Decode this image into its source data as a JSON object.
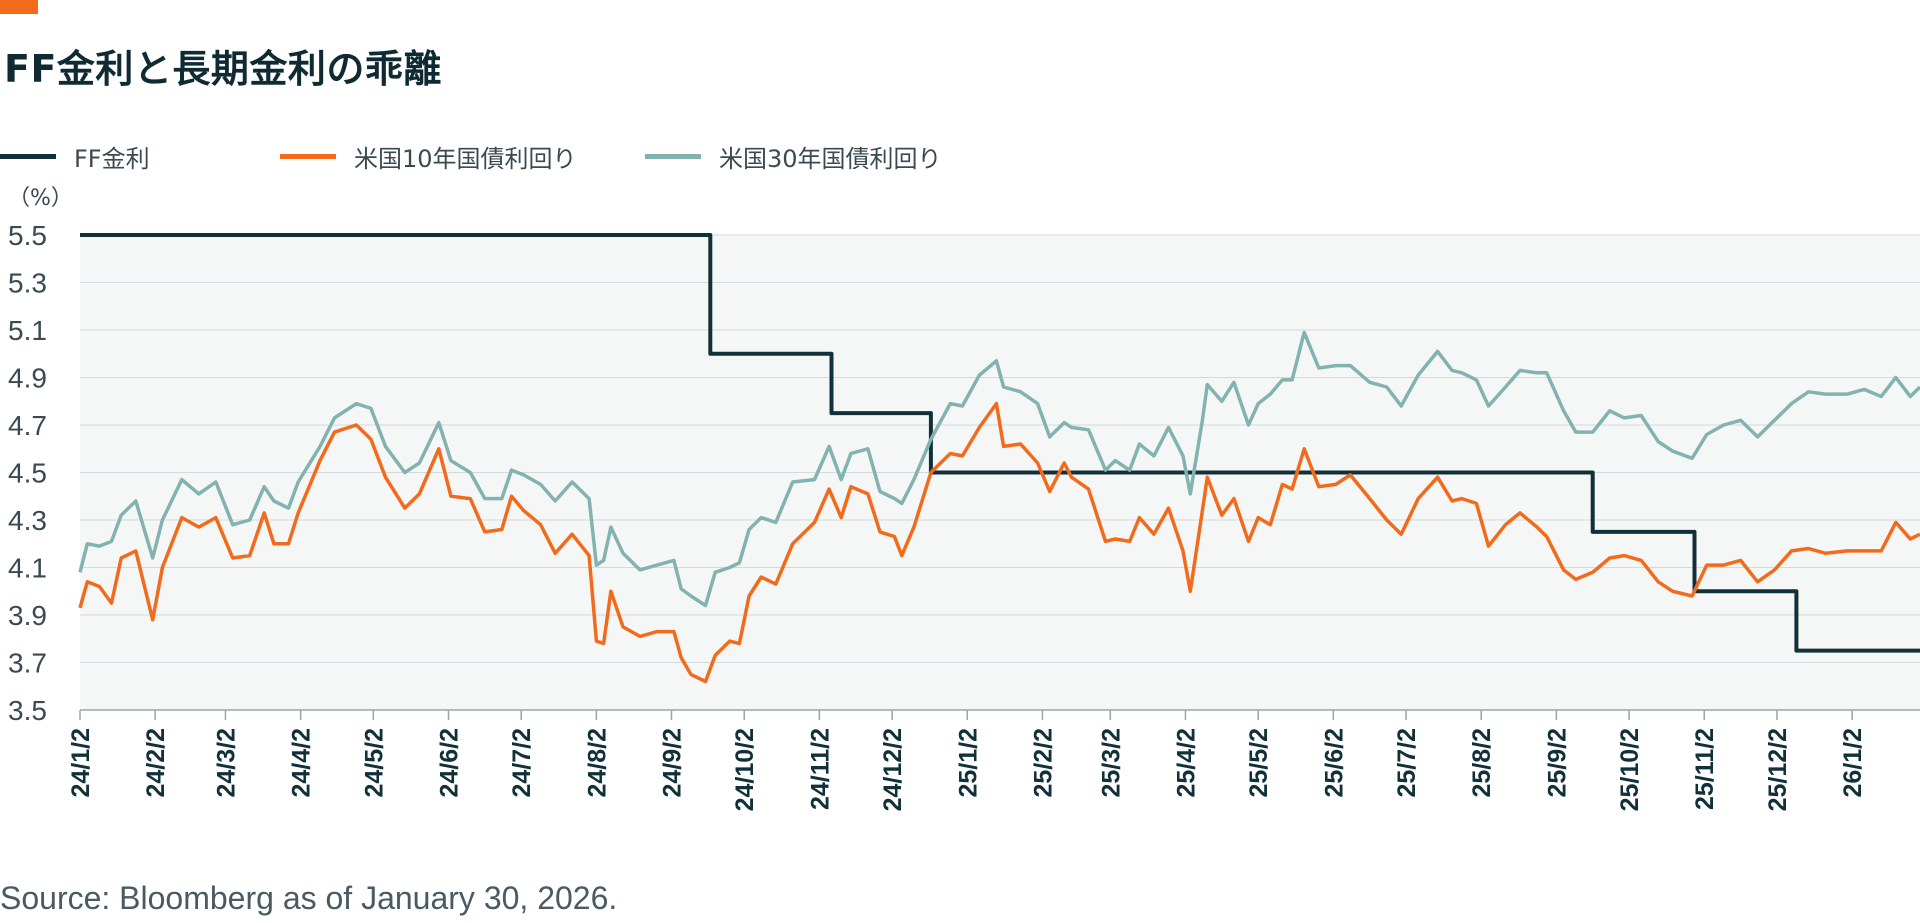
{
  "title": "FF金利と長期金利の乖離",
  "legend": [
    {
      "label": "FF金利",
      "color": "#12303a"
    },
    {
      "label": "米国10年国債利回り",
      "color": "#f26b1d"
    },
    {
      "label": "米国30年国債利回り",
      "color": "#82b3b0"
    }
  ],
  "source": "Source: Bloomberg as of January 30, 2026.",
  "chart_data": {
    "type": "line",
    "title": "FF金利と長期金利の乖離",
    "ylabel": "（%）",
    "ylim": [
      3.5,
      5.5
    ],
    "yticks": [
      "5.5",
      "5.3",
      "5.1",
      "4.9",
      "4.7",
      "4.5",
      "4.3",
      "4.1",
      "3.9",
      "3.7",
      "3.5"
    ],
    "x_range": [
      "24/1/2",
      "26/1/30"
    ],
    "x_ticks": [
      "24/1/2",
      "24/2/2",
      "24/3/2",
      "24/4/2",
      "24/5/2",
      "24/6/2",
      "24/7/2",
      "24/8/2",
      "24/9/2",
      "24/10/2",
      "24/11/2",
      "24/12/2",
      "25/1/2",
      "25/2/2",
      "25/3/2",
      "25/4/2",
      "25/5/2",
      "25/6/2",
      "25/7/2",
      "25/8/2",
      "25/9/2",
      "25/10/2",
      "25/11/2",
      "25/12/2",
      "26/1/2"
    ],
    "grid": true,
    "series": [
      {
        "name": "FF金利",
        "color": "#12303a",
        "style": "step",
        "points": [
          [
            "24/1/2",
            5.5
          ],
          [
            "24/9/18",
            5.5
          ],
          [
            "24/9/18",
            5.0
          ],
          [
            "24/11/7",
            5.0
          ],
          [
            "24/11/7",
            4.75
          ],
          [
            "24/12/18",
            4.75
          ],
          [
            "24/12/18",
            4.5
          ],
          [
            "25/9/17",
            4.5
          ],
          [
            "25/9/17",
            4.25
          ],
          [
            "25/10/29",
            4.25
          ],
          [
            "25/10/29",
            4.0
          ],
          [
            "25/12/10",
            4.0
          ],
          [
            "25/12/10",
            3.75
          ],
          [
            "26/1/30",
            3.75
          ]
        ]
      },
      {
        "name": "米国10年国債利回り",
        "color": "#f26b1d",
        "style": "line",
        "points": [
          [
            "24/1/2",
            3.93
          ],
          [
            "24/1/5",
            4.04
          ],
          [
            "24/1/10",
            4.02
          ],
          [
            "24/1/15",
            3.95
          ],
          [
            "24/1/19",
            4.14
          ],
          [
            "24/1/25",
            4.17
          ],
          [
            "24/2/1",
            3.88
          ],
          [
            "24/2/5",
            4.1
          ],
          [
            "24/2/13",
            4.31
          ],
          [
            "24/2/20",
            4.27
          ],
          [
            "24/2/27",
            4.31
          ],
          [
            "24/3/5",
            4.14
          ],
          [
            "24/3/12",
            4.15
          ],
          [
            "24/3/18",
            4.33
          ],
          [
            "24/3/22",
            4.2
          ],
          [
            "24/3/28",
            4.2
          ],
          [
            "24/4/1",
            4.33
          ],
          [
            "24/4/10",
            4.55
          ],
          [
            "24/4/16",
            4.67
          ],
          [
            "24/4/25",
            4.7
          ],
          [
            "24/5/1",
            4.64
          ],
          [
            "24/5/7",
            4.48
          ],
          [
            "24/5/15",
            4.35
          ],
          [
            "24/5/21",
            4.41
          ],
          [
            "24/5/29",
            4.6
          ],
          [
            "24/6/3",
            4.4
          ],
          [
            "24/6/11",
            4.39
          ],
          [
            "24/6/17",
            4.25
          ],
          [
            "24/6/24",
            4.26
          ],
          [
            "24/6/28",
            4.4
          ],
          [
            "24/7/3",
            4.34
          ],
          [
            "24/7/10",
            4.28
          ],
          [
            "24/7/16",
            4.16
          ],
          [
            "24/7/23",
            4.24
          ],
          [
            "24/7/30",
            4.15
          ],
          [
            "24/8/2",
            3.79
          ],
          [
            "24/8/5",
            3.78
          ],
          [
            "24/8/8",
            4.0
          ],
          [
            "24/8/13",
            3.85
          ],
          [
            "24/8/20",
            3.81
          ],
          [
            "24/8/27",
            3.83
          ],
          [
            "24/9/3",
            3.83
          ],
          [
            "24/9/6",
            3.72
          ],
          [
            "24/9/10",
            3.65
          ],
          [
            "24/9/16",
            3.62
          ],
          [
            "24/9/20",
            3.73
          ],
          [
            "24/9/26",
            3.79
          ],
          [
            "24/9/30",
            3.78
          ],
          [
            "24/10/4",
            3.98
          ],
          [
            "24/10/9",
            4.06
          ],
          [
            "24/10/15",
            4.03
          ],
          [
            "24/10/22",
            4.2
          ],
          [
            "24/10/31",
            4.29
          ],
          [
            "24/11/6",
            4.43
          ],
          [
            "24/11/11",
            4.31
          ],
          [
            "24/11/15",
            4.44
          ],
          [
            "24/11/22",
            4.41
          ],
          [
            "24/11/27",
            4.25
          ],
          [
            "24/12/3",
            4.23
          ],
          [
            "24/12/6",
            4.15
          ],
          [
            "24/12/11",
            4.27
          ],
          [
            "24/12/18",
            4.5
          ],
          [
            "24/12/26",
            4.58
          ],
          [
            "24/12/31",
            4.57
          ],
          [
            "25/1/7",
            4.69
          ],
          [
            "25/1/14",
            4.79
          ],
          [
            "25/1/17",
            4.61
          ],
          [
            "25/1/24",
            4.62
          ],
          [
            "25/1/31",
            4.54
          ],
          [
            "25/2/5",
            4.42
          ],
          [
            "25/2/11",
            4.54
          ],
          [
            "25/2/14",
            4.48
          ],
          [
            "25/2/21",
            4.43
          ],
          [
            "25/2/28",
            4.21
          ],
          [
            "25/3/4",
            4.22
          ],
          [
            "25/3/10",
            4.21
          ],
          [
            "25/3/14",
            4.31
          ],
          [
            "25/3/20",
            4.24
          ],
          [
            "25/3/26",
            4.35
          ],
          [
            "25/4/1",
            4.17
          ],
          [
            "25/4/4",
            4.0
          ],
          [
            "25/4/9",
            4.34
          ],
          [
            "25/4/11",
            4.48
          ],
          [
            "25/4/17",
            4.32
          ],
          [
            "25/4/22",
            4.39
          ],
          [
            "25/4/28",
            4.21
          ],
          [
            "25/5/2",
            4.31
          ],
          [
            "25/5/7",
            4.28
          ],
          [
            "25/5/12",
            4.45
          ],
          [
            "25/5/16",
            4.43
          ],
          [
            "25/5/21",
            4.6
          ],
          [
            "25/5/27",
            4.44
          ],
          [
            "25/6/3",
            4.45
          ],
          [
            "25/6/9",
            4.49
          ],
          [
            "25/6/17",
            4.39
          ],
          [
            "25/6/24",
            4.3
          ],
          [
            "25/6/30",
            4.24
          ],
          [
            "25/7/7",
            4.39
          ],
          [
            "25/7/15",
            4.48
          ],
          [
            "25/7/21",
            4.38
          ],
          [
            "25/7/25",
            4.39
          ],
          [
            "25/7/31",
            4.37
          ],
          [
            "25/8/5",
            4.19
          ],
          [
            "25/8/12",
            4.28
          ],
          [
            "25/8/18",
            4.33
          ],
          [
            "25/8/25",
            4.27
          ],
          [
            "25/8/29",
            4.23
          ],
          [
            "25/9/5",
            4.09
          ],
          [
            "25/9/10",
            4.05
          ],
          [
            "25/9/17",
            4.08
          ],
          [
            "25/9/24",
            4.14
          ],
          [
            "25/9/30",
            4.15
          ],
          [
            "25/10/7",
            4.13
          ],
          [
            "25/10/14",
            4.04
          ],
          [
            "25/10/20",
            4.0
          ],
          [
            "25/10/28",
            3.98
          ],
          [
            "25/11/3",
            4.11
          ],
          [
            "25/11/10",
            4.11
          ],
          [
            "25/11/17",
            4.13
          ],
          [
            "25/11/24",
            4.04
          ],
          [
            "25/12/1",
            4.09
          ],
          [
            "25/12/8",
            4.17
          ],
          [
            "25/12/15",
            4.18
          ],
          [
            "25/12/22",
            4.16
          ],
          [
            "25/12/31",
            4.17
          ],
          [
            "26/1/7",
            4.17
          ],
          [
            "26/1/14",
            4.17
          ],
          [
            "26/1/20",
            4.29
          ],
          [
            "26/1/26",
            4.22
          ],
          [
            "26/1/30",
            4.24
          ]
        ]
      },
      {
        "name": "米国30年国債利回り",
        "color": "#82b3b0",
        "style": "line",
        "points": [
          [
            "24/1/2",
            4.08
          ],
          [
            "24/1/5",
            4.2
          ],
          [
            "24/1/10",
            4.19
          ],
          [
            "24/1/15",
            4.21
          ],
          [
            "24/1/19",
            4.32
          ],
          [
            "24/1/25",
            4.38
          ],
          [
            "24/2/1",
            4.14
          ],
          [
            "24/2/5",
            4.3
          ],
          [
            "24/2/13",
            4.47
          ],
          [
            "24/2/20",
            4.41
          ],
          [
            "24/2/27",
            4.46
          ],
          [
            "24/3/5",
            4.28
          ],
          [
            "24/3/12",
            4.3
          ],
          [
            "24/3/18",
            4.44
          ],
          [
            "24/3/22",
            4.38
          ],
          [
            "24/3/28",
            4.35
          ],
          [
            "24/4/1",
            4.46
          ],
          [
            "24/4/10",
            4.61
          ],
          [
            "24/4/16",
            4.73
          ],
          [
            "24/4/25",
            4.79
          ],
          [
            "24/5/1",
            4.77
          ],
          [
            "24/5/7",
            4.61
          ],
          [
            "24/5/15",
            4.5
          ],
          [
            "24/5/21",
            4.54
          ],
          [
            "24/5/29",
            4.71
          ],
          [
            "24/6/3",
            4.55
          ],
          [
            "24/6/11",
            4.5
          ],
          [
            "24/6/17",
            4.39
          ],
          [
            "24/6/24",
            4.39
          ],
          [
            "24/6/28",
            4.51
          ],
          [
            "24/7/3",
            4.49
          ],
          [
            "24/7/10",
            4.45
          ],
          [
            "24/7/16",
            4.38
          ],
          [
            "24/7/23",
            4.46
          ],
          [
            "24/7/30",
            4.39
          ],
          [
            "24/8/2",
            4.11
          ],
          [
            "24/8/5",
            4.13
          ],
          [
            "24/8/8",
            4.27
          ],
          [
            "24/8/13",
            4.16
          ],
          [
            "24/8/20",
            4.09
          ],
          [
            "24/8/27",
            4.11
          ],
          [
            "24/9/3",
            4.13
          ],
          [
            "24/9/6",
            4.01
          ],
          [
            "24/9/10",
            3.98
          ],
          [
            "24/9/16",
            3.94
          ],
          [
            "24/9/20",
            4.08
          ],
          [
            "24/9/26",
            4.1
          ],
          [
            "24/9/30",
            4.12
          ],
          [
            "24/10/4",
            4.26
          ],
          [
            "24/10/9",
            4.31
          ],
          [
            "24/10/15",
            4.29
          ],
          [
            "24/10/22",
            4.46
          ],
          [
            "24/10/31",
            4.47
          ],
          [
            "24/11/6",
            4.61
          ],
          [
            "24/11/11",
            4.47
          ],
          [
            "24/11/15",
            4.58
          ],
          [
            "24/11/22",
            4.6
          ],
          [
            "24/11/27",
            4.42
          ],
          [
            "24/12/3",
            4.39
          ],
          [
            "24/12/6",
            4.37
          ],
          [
            "24/12/11",
            4.47
          ],
          [
            "24/12/18",
            4.64
          ],
          [
            "24/12/26",
            4.79
          ],
          [
            "24/12/31",
            4.78
          ],
          [
            "25/1/7",
            4.91
          ],
          [
            "25/1/14",
            4.97
          ],
          [
            "25/1/17",
            4.86
          ],
          [
            "25/1/24",
            4.84
          ],
          [
            "25/1/31",
            4.79
          ],
          [
            "25/2/5",
            4.65
          ],
          [
            "25/2/11",
            4.71
          ],
          [
            "25/2/14",
            4.69
          ],
          [
            "25/2/21",
            4.68
          ],
          [
            "25/2/28",
            4.51
          ],
          [
            "25/3/4",
            4.55
          ],
          [
            "25/3/10",
            4.51
          ],
          [
            "25/3/14",
            4.62
          ],
          [
            "25/3/20",
            4.57
          ],
          [
            "25/3/26",
            4.69
          ],
          [
            "25/4/1",
            4.57
          ],
          [
            "25/4/4",
            4.41
          ],
          [
            "25/4/9",
            4.72
          ],
          [
            "25/4/11",
            4.87
          ],
          [
            "25/4/17",
            4.8
          ],
          [
            "25/4/22",
            4.88
          ],
          [
            "25/4/28",
            4.7
          ],
          [
            "25/5/2",
            4.79
          ],
          [
            "25/5/7",
            4.83
          ],
          [
            "25/5/12",
            4.89
          ],
          [
            "25/5/16",
            4.89
          ],
          [
            "25/5/21",
            5.09
          ],
          [
            "25/5/27",
            4.94
          ],
          [
            "25/6/3",
            4.95
          ],
          [
            "25/6/9",
            4.95
          ],
          [
            "25/6/17",
            4.88
          ],
          [
            "25/6/24",
            4.86
          ],
          [
            "25/6/30",
            4.78
          ],
          [
            "25/7/7",
            4.91
          ],
          [
            "25/7/15",
            5.01
          ],
          [
            "25/7/21",
            4.93
          ],
          [
            "25/7/25",
            4.92
          ],
          [
            "25/7/31",
            4.89
          ],
          [
            "25/8/5",
            4.78
          ],
          [
            "25/8/12",
            4.86
          ],
          [
            "25/8/18",
            4.93
          ],
          [
            "25/8/25",
            4.92
          ],
          [
            "25/8/29",
            4.92
          ],
          [
            "25/9/5",
            4.76
          ],
          [
            "25/9/10",
            4.67
          ],
          [
            "25/9/17",
            4.67
          ],
          [
            "25/9/24",
            4.76
          ],
          [
            "25/9/30",
            4.73
          ],
          [
            "25/10/7",
            4.74
          ],
          [
            "25/10/14",
            4.63
          ],
          [
            "25/10/20",
            4.59
          ],
          [
            "25/10/28",
            4.56
          ],
          [
            "25/11/3",
            4.66
          ],
          [
            "25/11/10",
            4.7
          ],
          [
            "25/11/17",
            4.72
          ],
          [
            "25/11/24",
            4.65
          ],
          [
            "25/12/1",
            4.72
          ],
          [
            "25/12/8",
            4.79
          ],
          [
            "25/12/15",
            4.84
          ],
          [
            "25/12/22",
            4.83
          ],
          [
            "25/12/31",
            4.83
          ],
          [
            "26/1/7",
            4.85
          ],
          [
            "26/1/14",
            4.82
          ],
          [
            "26/1/20",
            4.9
          ],
          [
            "26/1/26",
            4.82
          ],
          [
            "26/1/30",
            4.86
          ]
        ]
      }
    ]
  }
}
